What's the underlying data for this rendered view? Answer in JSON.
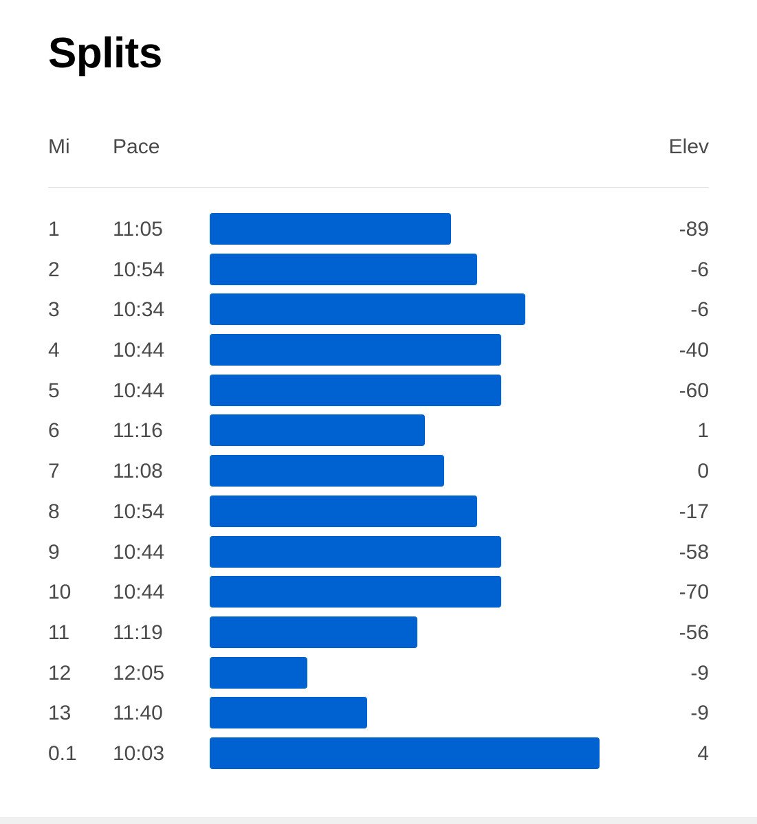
{
  "title": "Splits",
  "columns": {
    "mi": "Mi",
    "pace": "Pace",
    "elev": "Elev"
  },
  "colors": {
    "bar": "#0061d1",
    "text": "#4a4a4a",
    "title": "#000000"
  },
  "splits": [
    {
      "mi": "1",
      "pace": "11:05",
      "elev": "-89"
    },
    {
      "mi": "2",
      "pace": "10:54",
      "elev": "-6"
    },
    {
      "mi": "3",
      "pace": "10:34",
      "elev": "-6"
    },
    {
      "mi": "4",
      "pace": "10:44",
      "elev": "-40"
    },
    {
      "mi": "5",
      "pace": "10:44",
      "elev": "-60"
    },
    {
      "mi": "6",
      "pace": "11:16",
      "elev": "1"
    },
    {
      "mi": "7",
      "pace": "11:08",
      "elev": "0"
    },
    {
      "mi": "8",
      "pace": "10:54",
      "elev": "-17"
    },
    {
      "mi": "9",
      "pace": "10:44",
      "elev": "-58"
    },
    {
      "mi": "10",
      "pace": "10:44",
      "elev": "-70"
    },
    {
      "mi": "11",
      "pace": "11:19",
      "elev": "-56"
    },
    {
      "mi": "12",
      "pace": "12:05",
      "elev": "-9"
    },
    {
      "mi": "13",
      "pace": "11:40",
      "elev": "-9"
    },
    {
      "mi": "0.1",
      "pace": "10:03",
      "elev": "4"
    }
  ]
}
